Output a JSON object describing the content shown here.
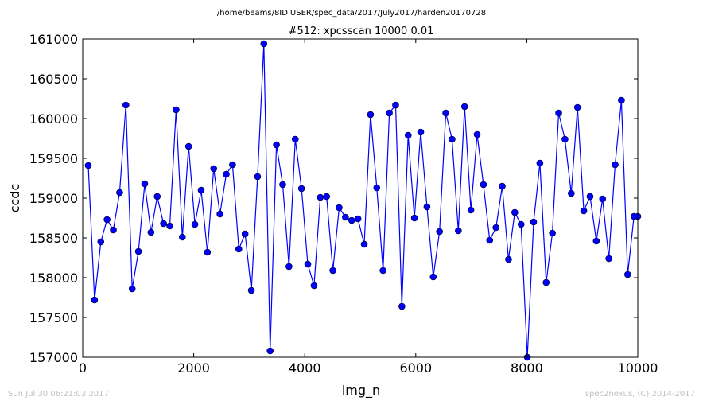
{
  "chart_data": {
    "type": "line",
    "suptitle": "/home/beams/8IDIUSER/spec_data/2017/July2017/harden20170728",
    "title": "#512: xpcsscan 10000 0.01",
    "xlabel": "img_n",
    "ylabel": "ccdc",
    "xlim": [
      0,
      10000
    ],
    "ylim": [
      157000,
      161000
    ],
    "xticks": [
      0,
      2000,
      4000,
      6000,
      8000,
      10000
    ],
    "yticks": [
      157000,
      157500,
      158000,
      158500,
      159000,
      159500,
      160000,
      160500,
      161000
    ],
    "grid": false,
    "line_color": "#0000ff",
    "marker_color": "#0000ff",
    "series": [
      {
        "x": [
          100,
          213,
          326,
          439,
          552,
          665,
          778,
          891,
          1004,
          1117,
          1230,
          1343,
          1456,
          1569,
          1682,
          1795,
          1908,
          2021,
          2134,
          2247,
          2360,
          2473,
          2586,
          2699,
          2812,
          2925,
          3038,
          3151,
          3264,
          3377,
          3490,
          3603,
          3716,
          3829,
          3942,
          4055,
          4168,
          4281,
          4394,
          4507,
          4620,
          4733,
          4846,
          4959,
          5072,
          5185,
          5298,
          5411,
          5524,
          5637,
          5750,
          5863,
          5976,
          6089,
          6202,
          6315,
          6428,
          6541,
          6654,
          6767,
          6880,
          6993,
          7106,
          7219,
          7332,
          7445,
          7558,
          7671,
          7784,
          7897,
          8010,
          8123,
          8236,
          8349,
          8462,
          8575,
          8688,
          8801,
          8914,
          9027,
          9140,
          9253,
          9366,
          9479,
          9592,
          9705,
          9818,
          9931,
          10000
        ],
        "y": [
          159410,
          157720,
          158450,
          158730,
          158600,
          159070,
          160170,
          157860,
          158330,
          159180,
          158570,
          159020,
          158680,
          158650,
          160110,
          158510,
          159650,
          158670,
          159100,
          158320,
          159370,
          158800,
          159300,
          159420,
          158360,
          158550,
          157840,
          159270,
          160940,
          157080,
          159670,
          159170,
          158140,
          159740,
          159120,
          158170,
          157900,
          159010,
          159020,
          158090,
          158880,
          158760,
          158720,
          158740,
          158420,
          160050,
          159130,
          158090,
          160070,
          160170,
          157640,
          159790,
          158750,
          159830,
          158890,
          158010,
          158580,
          160070,
          159740,
          158590,
          160150,
          158850,
          159800,
          159170,
          158470,
          158630,
          159150,
          158230,
          158820,
          158670,
          157000,
          158700,
          159440,
          157940,
          158560,
          160070,
          159740,
          159060,
          160140,
          158840,
          159020,
          158460,
          158990,
          158240,
          159420,
          160230,
          158040,
          158770,
          158770
        ]
      }
    ]
  },
  "footer": {
    "timestamp": "Sun Jul 30 06:21:03 2017",
    "credit": "spec2nexus, (C) 2014-2017"
  }
}
